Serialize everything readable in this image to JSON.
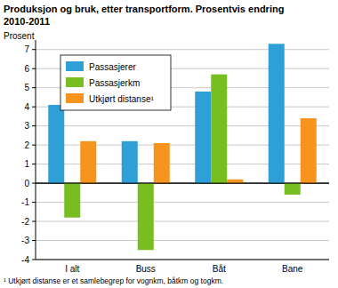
{
  "chart_data": {
    "type": "bar",
    "title": "Produksjon og bruk, etter transportform. Prosentvis endring",
    "subtitle": "2010-2011",
    "y_label": "Prosent",
    "footnote": "¹ Utkjørt distanse er et samlebegrep for vognkm, båtkm og togkm.",
    "categories": [
      "I alt",
      "Buss",
      "Båt",
      "Bane"
    ],
    "series": [
      {
        "name": "Passasjerer",
        "color": "#2f9fd8",
        "values": [
          4.1,
          2.2,
          4.8,
          7.3
        ]
      },
      {
        "name": "Passasjerkm",
        "color": "#78be20",
        "values": [
          -1.8,
          -3.5,
          5.7,
          -0.6
        ]
      },
      {
        "name": "Utkjørt distanse¹",
        "color": "#f7941d",
        "values": [
          2.2,
          2.1,
          0.2,
          3.4
        ]
      }
    ],
    "ylim": [
      -4,
      7.5
    ],
    "yticks": [
      -4,
      -3,
      -2,
      -1,
      0,
      1,
      2,
      3,
      4,
      5,
      6,
      7
    ],
    "grid": true,
    "legend": "upper left"
  }
}
